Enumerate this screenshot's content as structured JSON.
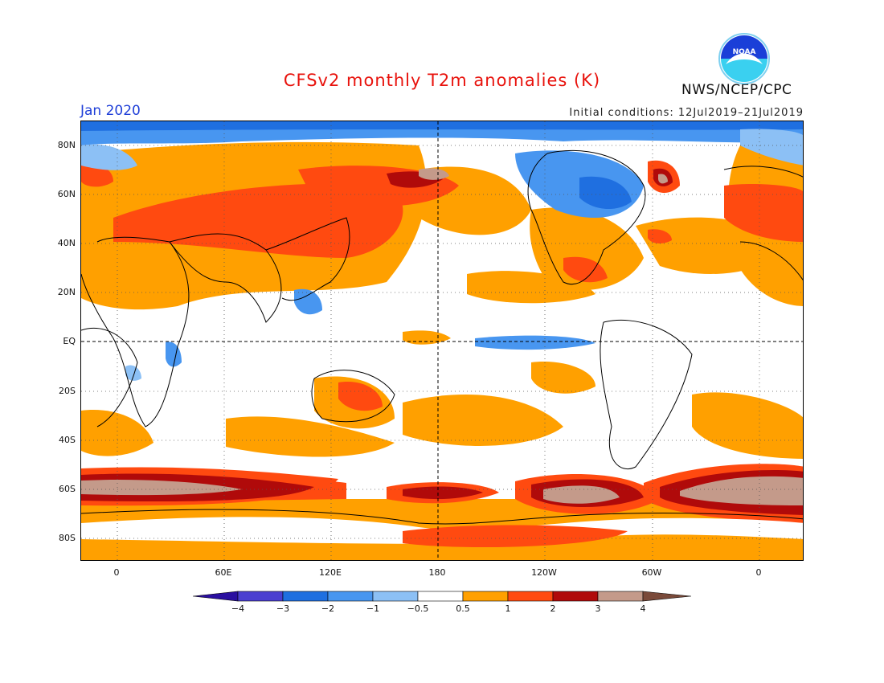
{
  "header": {
    "title": "CFSv2 monthly T2m anomalies (K)",
    "org": "NWS/NCEP/CPC",
    "logo_text": "NOAA",
    "month": "Jan 2020",
    "initial_conditions": "Initial conditions: 12Jul2019–21Jul2019"
  },
  "axes": {
    "lat_labels": [
      "80N",
      "60N",
      "40N",
      "20N",
      "EQ",
      "20S",
      "40S",
      "60S",
      "80S"
    ],
    "lon_labels": [
      "0",
      "60E",
      "120E",
      "180",
      "120W",
      "60W",
      "0"
    ]
  },
  "colorbar": {
    "labels": [
      "−4",
      "−3",
      "−2",
      "−1",
      "−0.5",
      "0.5",
      "1",
      "2",
      "3",
      "4"
    ],
    "colors": [
      "#2a0fa0",
      "#4a3fd0",
      "#1f6fe0",
      "#4896f0",
      "#8cc0f5",
      "#ffffff",
      "#ffa000",
      "#ff4a10",
      "#b00a0a",
      "#c49a8a",
      "#7a4a3a"
    ]
  },
  "colors": {
    "title": "#e8120c",
    "month": "#1f3fd8",
    "noaa_blue": "#1a4fd8"
  }
}
